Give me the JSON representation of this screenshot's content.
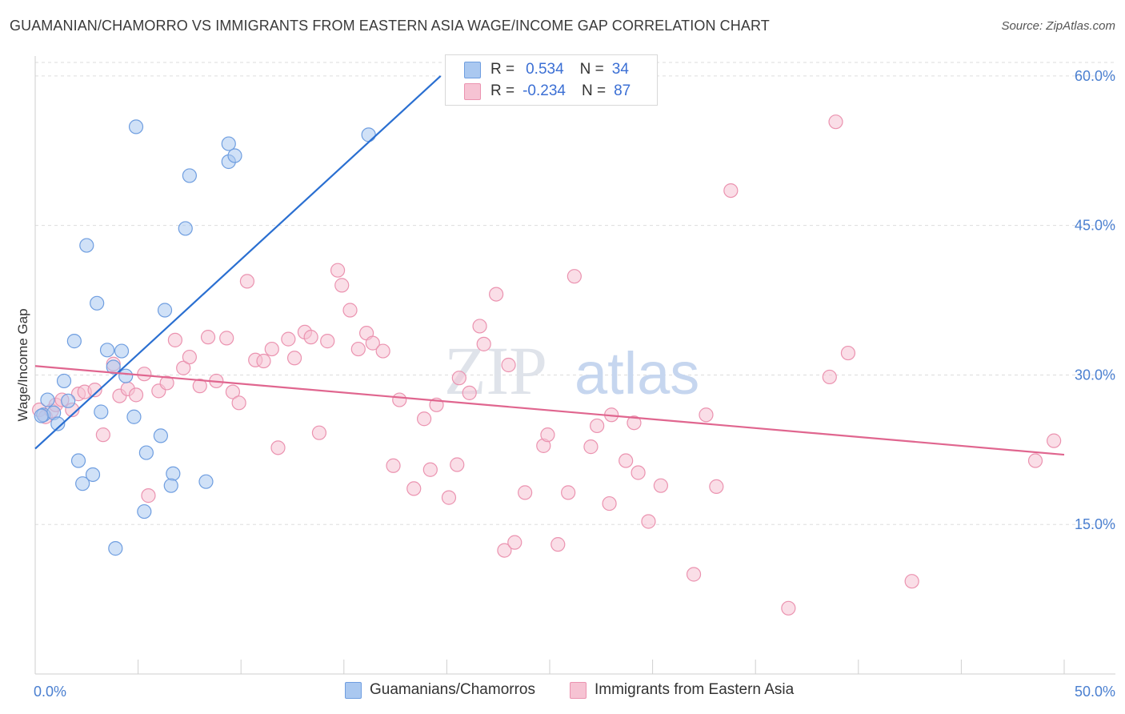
{
  "header": {
    "title": "GUAMANIAN/CHAMORRO VS IMMIGRANTS FROM EASTERN ASIA WAGE/INCOME GAP CORRELATION CHART",
    "source": "Source: ZipAtlas.com"
  },
  "watermark": {
    "zip": "ZIP",
    "atlas": "atlas"
  },
  "colors": {
    "blue_fill": "#aac8f0",
    "blue_stroke": "#6f9ee0",
    "blue_line": "#2a6fd1",
    "pink_fill": "#f6c3d3",
    "pink_stroke": "#eb93b0",
    "pink_line": "#e0668f",
    "tick_text": "#4a7fd0",
    "grid": "#dddddd"
  },
  "correlation_box": {
    "rows": [
      {
        "series": "Guamanians/Chamorros",
        "r_label": "R =",
        "r_value": "0.534",
        "n_label": "N =",
        "n_value": "34"
      },
      {
        "series": "Immigrants from Eastern Asia",
        "r_label": "R =",
        "r_value": "-0.234",
        "n_label": "N =",
        "n_value": "87"
      }
    ]
  },
  "chart_data": {
    "type": "scatter",
    "title": "GUAMANIAN/CHAMORRO VS IMMIGRANTS FROM EASTERN ASIA WAGE/INCOME GAP CORRELATION CHART",
    "xlabel": "",
    "ylabel": "Wage/Income Gap",
    "xlim": [
      0,
      50
    ],
    "ylim": [
      0,
      62
    ],
    "x_tick_labels": [
      "0.0%",
      "50.0%"
    ],
    "y_ticks": [
      15,
      30,
      45,
      60
    ],
    "y_tick_labels": [
      "15.0%",
      "30.0%",
      "45.0%",
      "60.0%"
    ],
    "grid": true,
    "legend_position": "bottom-center",
    "series": [
      {
        "name": "Guamanians/Chamorros",
        "color": "blue",
        "trend": {
          "x": [
            0,
            19.7
          ],
          "y": [
            22.6,
            60.0
          ]
        },
        "points": [
          [
            0.4,
            26.0
          ],
          [
            0.6,
            27.5
          ],
          [
            0.9,
            26.2
          ],
          [
            1.1,
            25.1
          ],
          [
            1.4,
            29.4
          ],
          [
            1.6,
            27.4
          ],
          [
            1.9,
            33.4
          ],
          [
            2.1,
            21.4
          ],
          [
            2.3,
            19.1
          ],
          [
            2.5,
            43.0
          ],
          [
            2.8,
            20.0
          ],
          [
            3.0,
            37.2
          ],
          [
            3.2,
            26.3
          ],
          [
            3.5,
            32.5
          ],
          [
            3.8,
            30.8
          ],
          [
            3.9,
            12.6
          ],
          [
            4.2,
            32.4
          ],
          [
            4.4,
            29.9
          ],
          [
            4.8,
            25.8
          ],
          [
            4.9,
            54.9
          ],
          [
            5.3,
            16.3
          ],
          [
            5.4,
            22.2
          ],
          [
            6.1,
            23.9
          ],
          [
            6.3,
            36.5
          ],
          [
            6.7,
            20.1
          ],
          [
            6.6,
            18.9
          ],
          [
            7.3,
            44.7
          ],
          [
            7.5,
            50.0
          ],
          [
            8.3,
            19.3
          ],
          [
            9.4,
            53.2
          ],
          [
            9.4,
            51.4
          ],
          [
            9.7,
            52.0
          ],
          [
            16.2,
            54.1
          ],
          [
            0.3,
            25.9
          ]
        ]
      },
      {
        "name": "Immigrants from Eastern Asia",
        "color": "pink",
        "trend": {
          "x": [
            0,
            50
          ],
          "y": [
            30.9,
            22.0
          ]
        },
        "points": [
          [
            0.2,
            26.5
          ],
          [
            0.5,
            25.8
          ],
          [
            0.8,
            26.4
          ],
          [
            1.0,
            27.0
          ],
          [
            1.3,
            27.5
          ],
          [
            1.8,
            26.5
          ],
          [
            2.1,
            28.1
          ],
          [
            2.4,
            28.3
          ],
          [
            2.9,
            28.5
          ],
          [
            3.3,
            24.0
          ],
          [
            3.8,
            31.1
          ],
          [
            4.1,
            27.9
          ],
          [
            4.5,
            28.6
          ],
          [
            4.9,
            28.0
          ],
          [
            5.3,
            30.1
          ],
          [
            5.5,
            17.9
          ],
          [
            6.0,
            28.4
          ],
          [
            6.4,
            29.2
          ],
          [
            6.8,
            33.5
          ],
          [
            7.2,
            30.7
          ],
          [
            7.5,
            31.8
          ],
          [
            8.0,
            28.9
          ],
          [
            8.4,
            33.8
          ],
          [
            8.8,
            29.4
          ],
          [
            9.3,
            33.7
          ],
          [
            9.6,
            28.3
          ],
          [
            9.9,
            27.2
          ],
          [
            10.3,
            39.4
          ],
          [
            10.7,
            31.5
          ],
          [
            11.1,
            31.4
          ],
          [
            11.5,
            32.6
          ],
          [
            11.8,
            22.7
          ],
          [
            12.3,
            33.6
          ],
          [
            12.6,
            31.7
          ],
          [
            13.1,
            34.3
          ],
          [
            13.4,
            33.8
          ],
          [
            13.8,
            24.2
          ],
          [
            14.2,
            33.4
          ],
          [
            14.7,
            40.5
          ],
          [
            14.9,
            39.0
          ],
          [
            15.3,
            36.5
          ],
          [
            15.7,
            32.6
          ],
          [
            16.1,
            34.2
          ],
          [
            16.4,
            33.2
          ],
          [
            16.9,
            32.4
          ],
          [
            17.4,
            20.9
          ],
          [
            17.7,
            27.5
          ],
          [
            18.4,
            18.6
          ],
          [
            18.9,
            25.6
          ],
          [
            19.2,
            20.5
          ],
          [
            19.5,
            27.0
          ],
          [
            20.1,
            17.7
          ],
          [
            20.5,
            21.0
          ],
          [
            20.6,
            29.7
          ],
          [
            21.1,
            28.2
          ],
          [
            21.6,
            34.9
          ],
          [
            21.8,
            33.1
          ],
          [
            22.4,
            38.1
          ],
          [
            22.8,
            12.4
          ],
          [
            23.0,
            31.0
          ],
          [
            23.3,
            13.2
          ],
          [
            23.8,
            18.2
          ],
          [
            24.7,
            22.9
          ],
          [
            24.9,
            24.0
          ],
          [
            25.4,
            13.0
          ],
          [
            25.9,
            18.2
          ],
          [
            26.2,
            39.9
          ],
          [
            27.0,
            22.8
          ],
          [
            27.3,
            24.9
          ],
          [
            27.9,
            17.1
          ],
          [
            28.0,
            26.0
          ],
          [
            28.7,
            21.4
          ],
          [
            29.1,
            25.2
          ],
          [
            29.3,
            20.2
          ],
          [
            29.8,
            15.3
          ],
          [
            30.4,
            18.9
          ],
          [
            32.0,
            10.0
          ],
          [
            32.6,
            26.0
          ],
          [
            33.1,
            18.8
          ],
          [
            33.8,
            48.5
          ],
          [
            36.6,
            6.6
          ],
          [
            38.6,
            29.8
          ],
          [
            38.9,
            55.4
          ],
          [
            39.5,
            32.2
          ],
          [
            42.6,
            9.3
          ],
          [
            48.6,
            21.4
          ],
          [
            49.5,
            23.4
          ]
        ]
      }
    ]
  },
  "legend": {
    "items": [
      {
        "label": "Guamanians/Chamorros"
      },
      {
        "label": "Immigrants from Eastern Asia"
      }
    ]
  }
}
